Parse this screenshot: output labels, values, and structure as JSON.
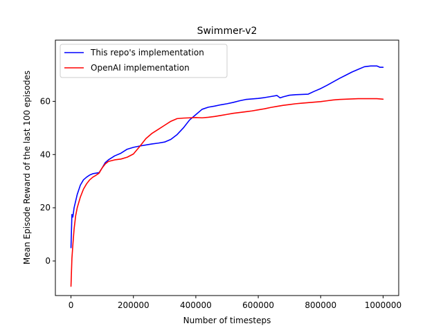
{
  "chart_data": {
    "type": "line",
    "title": "Swimmer-v2",
    "xlabel": "Number of timesteps",
    "ylabel": "Mean Episode Reward of the last 100 episodes",
    "xlim": [
      -50000,
      1050000
    ],
    "ylim": [
      -13,
      83
    ],
    "xticks": [
      0,
      200000,
      400000,
      600000,
      800000,
      1000000
    ],
    "xtick_labels": [
      "0",
      "200000",
      "400000",
      "600000",
      "800000",
      "1000000"
    ],
    "yticks": [
      0,
      20,
      40,
      60
    ],
    "ytick_labels": [
      "0",
      "20",
      "40",
      "60"
    ],
    "grid": false,
    "legend_position": "top-left",
    "series": [
      {
        "name": "This repo's implementation",
        "color": "#0000ff",
        "x": [
          0,
          3000,
          6000,
          10000,
          20000,
          30000,
          40000,
          50000,
          60000,
          70000,
          80000,
          90000,
          100000,
          110000,
          120000,
          140000,
          160000,
          180000,
          200000,
          220000,
          240000,
          260000,
          280000,
          300000,
          320000,
          340000,
          360000,
          380000,
          400000,
          420000,
          440000,
          460000,
          480000,
          500000,
          520000,
          540000,
          560000,
          580000,
          600000,
          620000,
          640000,
          660000,
          670000,
          680000,
          700000,
          720000,
          740000,
          760000,
          780000,
          800000,
          820000,
          840000,
          860000,
          880000,
          900000,
          920000,
          940000,
          960000,
          980000,
          990000,
          1000000
        ],
        "y": [
          5,
          17.5,
          16.5,
          20,
          25,
          28.5,
          30.5,
          31.5,
          32.3,
          32.8,
          33,
          33.2,
          35,
          37,
          38,
          39.5,
          40.5,
          42,
          42.7,
          43.2,
          43.6,
          44,
          44.3,
          44.7,
          45.7,
          47.5,
          50,
          53,
          55,
          57,
          57.8,
          58.2,
          58.7,
          59.1,
          59.6,
          60.2,
          60.7,
          60.9,
          61.1,
          61.4,
          61.8,
          62.2,
          61.3,
          61.7,
          62.3,
          62.5,
          62.6,
          62.7,
          63.8,
          64.8,
          66,
          67.3,
          68.6,
          69.8,
          71,
          72,
          73,
          73.3,
          73.3,
          72.8,
          72.8
        ]
      },
      {
        "name": "OpenAI implementation",
        "color": "#ff0000",
        "x": [
          0,
          3000,
          6000,
          10000,
          15000,
          20000,
          30000,
          40000,
          50000,
          60000,
          70000,
          80000,
          90000,
          100000,
          110000,
          120000,
          140000,
          160000,
          180000,
          200000,
          220000,
          240000,
          260000,
          280000,
          300000,
          320000,
          340000,
          360000,
          380000,
          400000,
          420000,
          440000,
          460000,
          480000,
          500000,
          520000,
          540000,
          560000,
          580000,
          600000,
          620000,
          640000,
          660000,
          680000,
          700000,
          720000,
          740000,
          760000,
          780000,
          800000,
          820000,
          840000,
          860000,
          880000,
          900000,
          920000,
          940000,
          960000,
          980000,
          1000000
        ],
        "y": [
          -9.5,
          1,
          6,
          12,
          17,
          20,
          24,
          27,
          29,
          30.5,
          31.5,
          32.2,
          33,
          35,
          36.5,
          37.4,
          38,
          38.3,
          39,
          40.2,
          43,
          46,
          48,
          49.5,
          51,
          52.5,
          53.5,
          53.7,
          53.8,
          53.9,
          53.8,
          54,
          54.3,
          54.7,
          55.1,
          55.5,
          55.8,
          56.1,
          56.4,
          56.8,
          57.2,
          57.7,
          58.1,
          58.5,
          58.8,
          59.1,
          59.3,
          59.5,
          59.7,
          59.9,
          60.2,
          60.5,
          60.7,
          60.8,
          60.9,
          61,
          61,
          61,
          61,
          60.8
        ]
      }
    ]
  }
}
